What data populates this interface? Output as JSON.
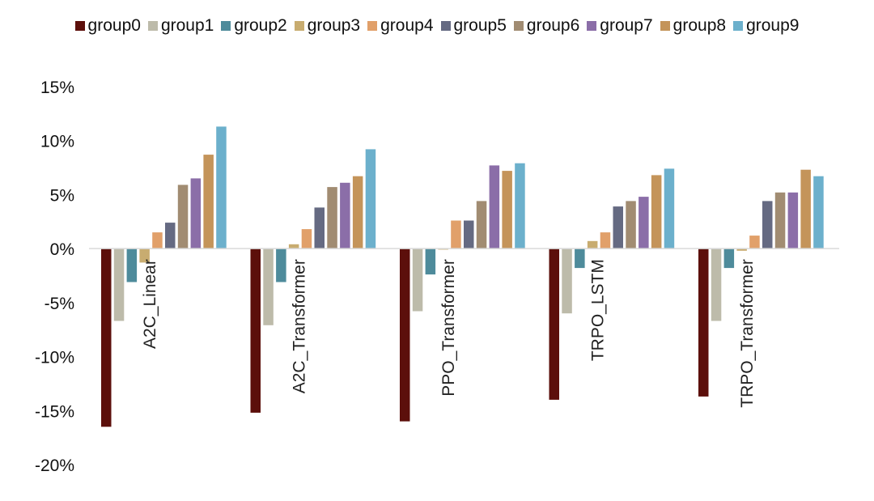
{
  "chart_data": {
    "type": "bar",
    "title": "",
    "xlabel": "",
    "ylabel": "",
    "ylim": [
      -20,
      15
    ],
    "yticks": [
      -20,
      -15,
      -10,
      -5,
      0,
      5,
      10,
      15
    ],
    "ytick_labels": [
      "-20%",
      "-15%",
      "-10%",
      "-5%",
      "0%",
      "5%",
      "10%",
      "15%"
    ],
    "grid": false,
    "legend_position": "top",
    "categories": [
      "A2C_Linear",
      "A2C_Transformer",
      "PPO_Transformer",
      "TRPO_LSTM",
      "TRPO_Transformer"
    ],
    "series": [
      {
        "name": "group0",
        "color": "#5c0f0b",
        "values": [
          -16.5,
          -15.2,
          -16.0,
          -14.0,
          -13.7
        ]
      },
      {
        "name": "group1",
        "color": "#bdbbaa",
        "values": [
          -6.7,
          -7.1,
          -5.8,
          -6.0,
          -6.7
        ]
      },
      {
        "name": "group2",
        "color": "#4e8b9b",
        "values": [
          -3.1,
          -3.1,
          -2.4,
          -1.8,
          -1.8
        ]
      },
      {
        "name": "group3",
        "color": "#c8ac70",
        "values": [
          -1.3,
          0.4,
          -0.1,
          0.7,
          -0.2
        ]
      },
      {
        "name": "group4",
        "color": "#e1a06a",
        "values": [
          1.5,
          1.8,
          2.6,
          1.5,
          1.2
        ]
      },
      {
        "name": "group5",
        "color": "#656a82",
        "values": [
          2.4,
          3.8,
          2.6,
          3.9,
          4.4
        ]
      },
      {
        "name": "group6",
        "color": "#a18c72",
        "values": [
          5.9,
          5.7,
          4.4,
          4.4,
          5.2
        ]
      },
      {
        "name": "group7",
        "color": "#8b6ea8",
        "values": [
          6.5,
          6.1,
          7.7,
          4.8,
          5.2
        ]
      },
      {
        "name": "group8",
        "color": "#c4945a",
        "values": [
          8.7,
          6.7,
          7.2,
          6.8,
          7.3
        ]
      },
      {
        "name": "group9",
        "color": "#6cb0cc",
        "values": [
          11.3,
          9.2,
          7.9,
          7.4,
          6.7
        ]
      }
    ]
  }
}
